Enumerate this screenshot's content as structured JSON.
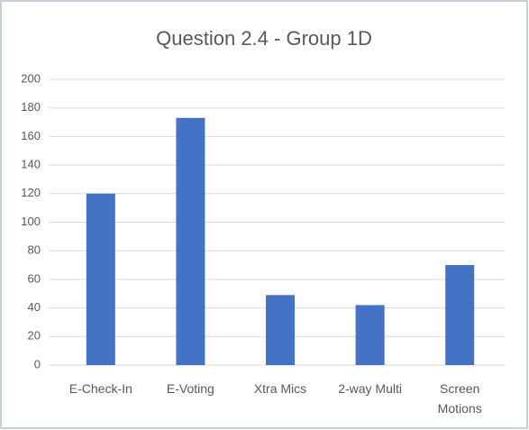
{
  "chart_data": {
    "type": "bar",
    "title": "Question 2.4 - Group 1D",
    "categories": [
      "E-Check-In",
      "E-Voting",
      "Xtra Mics",
      "2-way Multi",
      "Screen Motions"
    ],
    "values": [
      120,
      173,
      49,
      42,
      70
    ],
    "color": "#4472c4",
    "ylim": [
      0,
      200
    ],
    "yticks": [
      0,
      20,
      40,
      60,
      80,
      100,
      120,
      140,
      160,
      180,
      200
    ],
    "grid": true
  }
}
